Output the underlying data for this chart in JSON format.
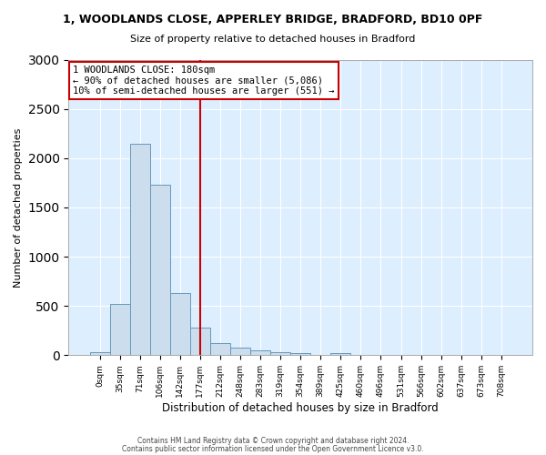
{
  "title1": "1, WOODLANDS CLOSE, APPERLEY BRIDGE, BRADFORD, BD10 0PF",
  "title2": "Size of property relative to detached houses in Bradford",
  "xlabel": "Distribution of detached houses by size in Bradford",
  "ylabel": "Number of detached properties",
  "categories": [
    "0sqm",
    "35sqm",
    "71sqm",
    "106sqm",
    "142sqm",
    "177sqm",
    "212sqm",
    "248sqm",
    "283sqm",
    "319sqm",
    "354sqm",
    "389sqm",
    "425sqm",
    "460sqm",
    "496sqm",
    "531sqm",
    "566sqm",
    "602sqm",
    "637sqm",
    "673sqm",
    "708sqm"
  ],
  "values": [
    30,
    520,
    2150,
    1730,
    630,
    280,
    120,
    80,
    50,
    35,
    25,
    5,
    20,
    5,
    5,
    0,
    0,
    0,
    0,
    0,
    0
  ],
  "bar_color": "#ccdded",
  "bar_edge_color": "#6699bb",
  "red_line_index": 5,
  "annotation_title": "1 WOODLANDS CLOSE: 180sqm",
  "annotation_line2": "← 90% of detached houses are smaller (5,086)",
  "annotation_line3": "10% of semi-detached houses are larger (551) →",
  "annotation_box_color": "#ffffff",
  "annotation_edge_color": "#cc0000",
  "red_line_color": "#cc0000",
  "ylim": [
    0,
    3000
  ],
  "yticks": [
    0,
    500,
    1000,
    1500,
    2000,
    2500,
    3000
  ],
  "footer1": "Contains HM Land Registry data © Crown copyright and database right 2024.",
  "footer2": "Contains public sector information licensed under the Open Government Licence v3.0.",
  "fig_bg_color": "#ffffff",
  "plot_bg_color": "#ddeeff"
}
